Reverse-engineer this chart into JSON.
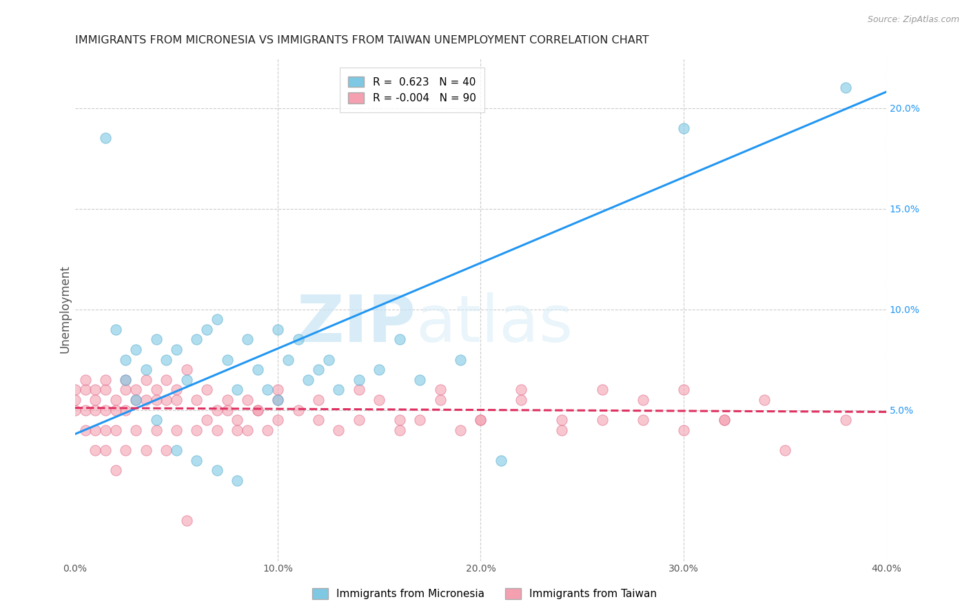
{
  "title": "IMMIGRANTS FROM MICRONESIA VS IMMIGRANTS FROM TAIWAN UNEMPLOYMENT CORRELATION CHART",
  "source": "Source: ZipAtlas.com",
  "ylabel": "Unemployment",
  "right_yticks": [
    "20.0%",
    "15.0%",
    "10.0%",
    "5.0%"
  ],
  "right_ytick_vals": [
    0.2,
    0.15,
    0.1,
    0.05
  ],
  "xlim": [
    0.0,
    0.4
  ],
  "ylim": [
    -0.025,
    0.225
  ],
  "legend_blue_r": "0.623",
  "legend_blue_n": "40",
  "legend_pink_r": "-0.004",
  "legend_pink_n": "90",
  "blue_color": "#7ec8e3",
  "blue_edge_color": "#5aaccf",
  "pink_color": "#f4a0b0",
  "pink_edge_color": "#e07090",
  "blue_line_color": "#2196F3",
  "pink_line_color": "#e03060",
  "watermark_zip": "ZIP",
  "watermark_atlas": "atlas",
  "blue_line_x": [
    0.0,
    0.4
  ],
  "blue_line_y": [
    0.038,
    0.208
  ],
  "pink_line_x": [
    0.0,
    0.4
  ],
  "pink_line_y": [
    0.051,
    0.049
  ],
  "micronesia_x": [
    0.015,
    0.02,
    0.025,
    0.03,
    0.035,
    0.04,
    0.045,
    0.05,
    0.055,
    0.06,
    0.065,
    0.07,
    0.075,
    0.08,
    0.085,
    0.09,
    0.095,
    0.1,
    0.105,
    0.11,
    0.115,
    0.12,
    0.125,
    0.13,
    0.14,
    0.15,
    0.16,
    0.17,
    0.19,
    0.21,
    0.025,
    0.03,
    0.04,
    0.05,
    0.06,
    0.07,
    0.08,
    0.1,
    0.3,
    0.38
  ],
  "micronesia_y": [
    0.185,
    0.09,
    0.075,
    0.08,
    0.07,
    0.085,
    0.075,
    0.08,
    0.065,
    0.085,
    0.09,
    0.095,
    0.075,
    0.06,
    0.085,
    0.07,
    0.06,
    0.09,
    0.075,
    0.085,
    0.065,
    0.07,
    0.075,
    0.06,
    0.065,
    0.07,
    0.085,
    0.065,
    0.075,
    0.025,
    0.065,
    0.055,
    0.045,
    0.03,
    0.025,
    0.02,
    0.015,
    0.055,
    0.19,
    0.21
  ],
  "taiwan_x": [
    0.0,
    0.0,
    0.0,
    0.005,
    0.005,
    0.005,
    0.01,
    0.01,
    0.01,
    0.01,
    0.015,
    0.015,
    0.015,
    0.015,
    0.02,
    0.02,
    0.02,
    0.025,
    0.025,
    0.025,
    0.03,
    0.03,
    0.035,
    0.035,
    0.04,
    0.04,
    0.045,
    0.045,
    0.05,
    0.05,
    0.055,
    0.06,
    0.065,
    0.07,
    0.075,
    0.08,
    0.085,
    0.09,
    0.095,
    0.1,
    0.005,
    0.01,
    0.015,
    0.02,
    0.025,
    0.03,
    0.035,
    0.04,
    0.045,
    0.05,
    0.055,
    0.06,
    0.065,
    0.07,
    0.075,
    0.08,
    0.085,
    0.09,
    0.1,
    0.11,
    0.12,
    0.13,
    0.14,
    0.15,
    0.16,
    0.17,
    0.18,
    0.19,
    0.2,
    0.22,
    0.24,
    0.26,
    0.28,
    0.3,
    0.32,
    0.34,
    0.1,
    0.12,
    0.14,
    0.16,
    0.18,
    0.2,
    0.22,
    0.24,
    0.26,
    0.28,
    0.3,
    0.32,
    0.35,
    0.38
  ],
  "taiwan_y": [
    0.05,
    0.055,
    0.06,
    0.04,
    0.05,
    0.06,
    0.03,
    0.04,
    0.05,
    0.06,
    0.03,
    0.04,
    0.05,
    0.06,
    0.02,
    0.04,
    0.05,
    0.03,
    0.05,
    0.06,
    0.04,
    0.06,
    0.03,
    0.055,
    0.04,
    0.06,
    0.03,
    0.055,
    0.04,
    0.06,
    0.07,
    0.055,
    0.06,
    0.05,
    0.055,
    0.04,
    0.055,
    0.05,
    0.04,
    0.055,
    0.065,
    0.055,
    0.065,
    0.055,
    0.065,
    0.055,
    0.065,
    0.055,
    0.065,
    0.055,
    -0.005,
    0.04,
    0.045,
    0.04,
    0.05,
    0.045,
    0.04,
    0.05,
    0.045,
    0.05,
    0.055,
    0.04,
    0.045,
    0.055,
    0.04,
    0.045,
    0.055,
    0.04,
    0.045,
    0.055,
    0.04,
    0.045,
    0.055,
    0.04,
    0.045,
    0.055,
    0.06,
    0.045,
    0.06,
    0.045,
    0.06,
    0.045,
    0.06,
    0.045,
    0.06,
    0.045,
    0.06,
    0.045,
    0.03,
    0.045
  ]
}
